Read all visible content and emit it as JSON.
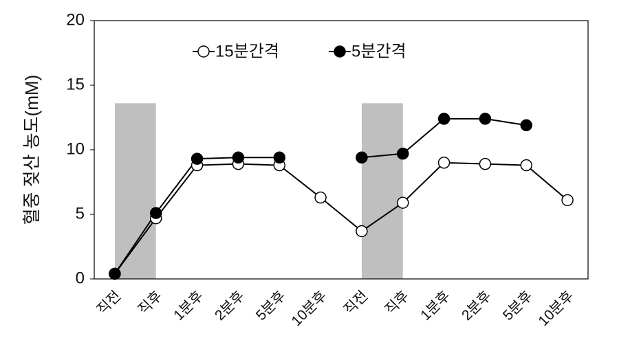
{
  "chart_data": {
    "type": "line",
    "y_label": "혈중 젖산 농도(mM)",
    "categories": [
      "직전",
      "직후",
      "1분후",
      "2분후",
      "5분후",
      "10분후",
      "직전",
      "직후",
      "1분후",
      "2분후",
      "5분후",
      "10분후"
    ],
    "series": [
      {
        "name": "15분간격",
        "color": "#000000",
        "marker": "open",
        "values": [
          0.4,
          4.7,
          8.8,
          8.9,
          8.8,
          6.3,
          3.7,
          5.9,
          9.0,
          8.9,
          8.8,
          6.1
        ]
      },
      {
        "name": "5분간격",
        "color": "#000000",
        "marker": "filled",
        "values": [
          0.4,
          5.1,
          9.3,
          9.4,
          9.4,
          null,
          9.4,
          9.7,
          12.4,
          12.4,
          11.9,
          null
        ]
      }
    ],
    "shaded_spans": [
      {
        "start": 0,
        "end": 1,
        "top": 13.6,
        "color": "#bfbfbf"
      },
      {
        "start": 6,
        "end": 7,
        "top": 13.6,
        "color": "#bfbfbf"
      }
    ],
    "ylim": [
      0,
      20
    ],
    "yticks": [
      0,
      5,
      10,
      15,
      20
    ],
    "grid": false,
    "legend": "top"
  }
}
